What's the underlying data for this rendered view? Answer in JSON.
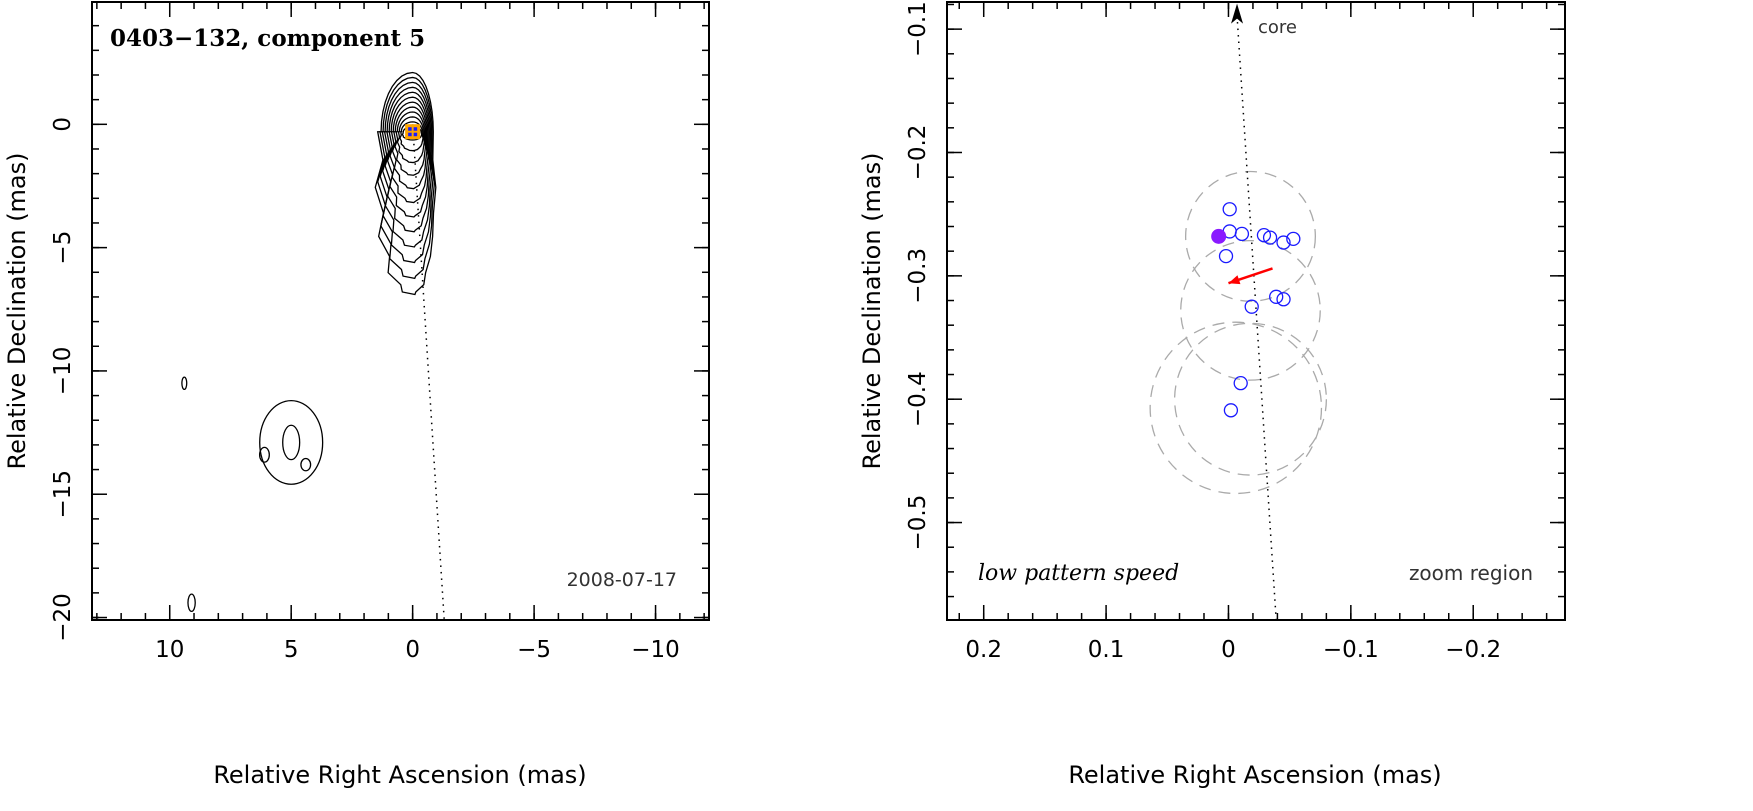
{
  "chart_data": [
    {
      "type": "contour",
      "title": "0403−132, component 5",
      "date": "2008-07-17",
      "xlabel": "Relative Right Ascension (mas)",
      "ylabel": "Relative Declination (mas)",
      "xlim": [
        13.2,
        -12.2
      ],
      "ylim": [
        -20.1,
        4.96
      ],
      "xticks": [
        10,
        5,
        0,
        -5,
        -10
      ],
      "xtick_labels": [
        "10",
        "5",
        "0",
        "−5",
        "−10"
      ],
      "yticks": [
        0,
        -5,
        -10,
        -15,
        -20
      ],
      "ytick_labels": [
        "0",
        "−5",
        "−10",
        "−15",
        "−20"
      ],
      "component_position": {
        "x": 0.0,
        "y": -0.3
      },
      "jet_direction_line": {
        "from": [
          0,
          0
        ],
        "to": [
          -1.3,
          -20.1
        ]
      },
      "contour_levels": 12,
      "colors": {
        "marker_edge": "#ffa500",
        "marker_fill": "#1a1aff",
        "contours": "#000000"
      }
    },
    {
      "type": "scatter",
      "xlabel": "Relative Right Ascension (mas)",
      "ylabel": "Relative Declination (mas)",
      "xlim": [
        0.23,
        -0.275
      ],
      "ylim": [
        -0.579,
        -0.078
      ],
      "xticks": [
        0.2,
        0.1,
        0,
        -0.1,
        -0.2
      ],
      "xtick_labels": [
        "0.2",
        "0.1",
        "0",
        "−0.1",
        "−0.2"
      ],
      "yticks": [
        -0.1,
        -0.2,
        -0.3,
        -0.4,
        -0.5
      ],
      "ytick_labels": [
        "−0.1",
        "−0.2",
        "−0.3",
        "−0.4",
        "−0.5"
      ],
      "annotation_speed": "low pattern speed",
      "annotation_zoom": "zoom region",
      "annotation_core": "core",
      "points": [
        {
          "x": -0.001,
          "y": -0.246
        },
        {
          "x": -0.001,
          "y": -0.264
        },
        {
          "x": -0.011,
          "y": -0.266
        },
        {
          "x": -0.029,
          "y": -0.267
        },
        {
          "x": -0.034,
          "y": -0.269
        },
        {
          "x": -0.045,
          "y": -0.273
        },
        {
          "x": -0.053,
          "y": -0.27
        },
        {
          "x": 0.002,
          "y": -0.284
        },
        {
          "x": -0.039,
          "y": -0.317
        },
        {
          "x": -0.045,
          "y": -0.319
        },
        {
          "x": -0.019,
          "y": -0.325
        },
        {
          "x": -0.01,
          "y": -0.387
        },
        {
          "x": -0.002,
          "y": -0.409
        }
      ],
      "highlight_point": {
        "x": 0.008,
        "y": -0.268
      },
      "uncertainty_circles": [
        {
          "x": -0.018,
          "y": -0.268,
          "r": 0.053
        },
        {
          "x": -0.018,
          "y": -0.328,
          "r": 0.057
        },
        {
          "x": -0.006,
          "y": -0.407,
          "r": 0.07
        },
        {
          "x": -0.018,
          "y": -0.4,
          "r": 0.062
        }
      ],
      "motion_vector": {
        "from": [
          -0.036,
          -0.294
        ],
        "to": [
          0.0,
          -0.306
        ]
      },
      "jet_direction_line": {
        "from": [
          -0.007,
          -0.089
        ],
        "to": [
          -0.039,
          -0.579
        ]
      },
      "colors": {
        "points": "#1a1aff",
        "highlight": "#8a1aff",
        "vector": "#ff0000",
        "circles": "#aaaaaa"
      }
    }
  ]
}
